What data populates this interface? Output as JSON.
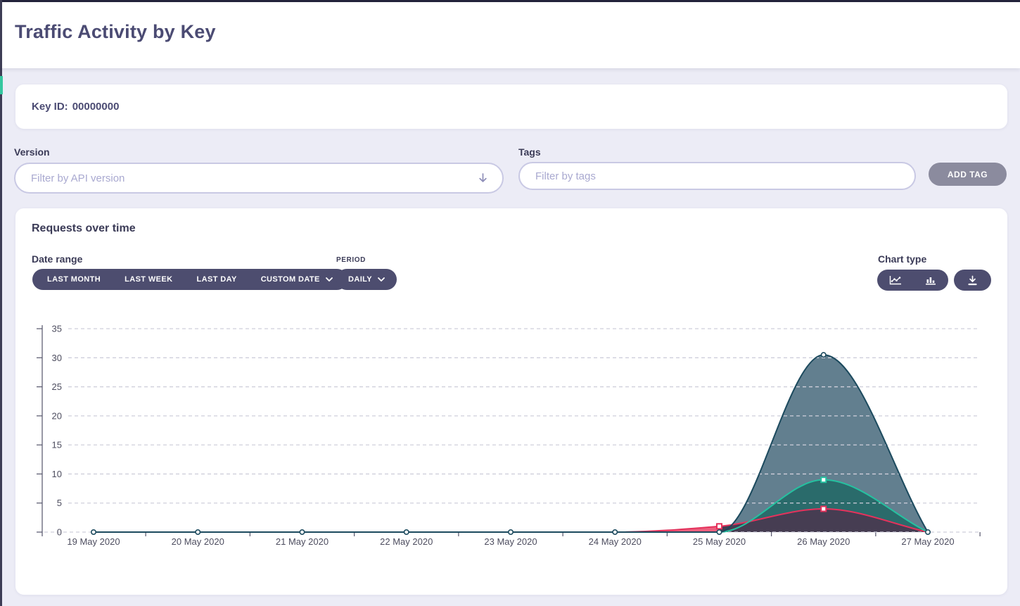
{
  "header": {
    "title": "Traffic Activity by Key"
  },
  "key_card": {
    "label": "Key ID:",
    "value": "00000000"
  },
  "filters": {
    "version": {
      "label": "Version",
      "placeholder": "Filter by API version",
      "icon": "arrow-down-icon"
    },
    "tags": {
      "label": "Tags",
      "placeholder": "Filter by tags",
      "add_button": "ADD TAG"
    }
  },
  "chart_card": {
    "title": "Requests over time",
    "date_range": {
      "label": "Date range",
      "buttons": [
        "LAST MONTH",
        "LAST WEEK",
        "LAST DAY",
        "CUSTOM DATE"
      ],
      "custom_date_icon": "chevron-down-icon"
    },
    "period": {
      "label": "PERIOD",
      "value": "DAILY",
      "icon": "chevron-down-icon"
    },
    "chart_type": {
      "label": "Chart type",
      "icons": [
        "line-chart-icon",
        "bar-chart-icon",
        "download-icon"
      ]
    }
  },
  "colors": {
    "accent_teal": "#35c7a0",
    "dark_button": "#4d4d6f",
    "add_tag_bg": "#8b8b9e",
    "title": "#4b4b73",
    "page_bg": "#ececf6"
  },
  "chart_data": {
    "type": "area",
    "title": "Requests over time",
    "x": [
      "19 May 2020",
      "20 May 2020",
      "21 May 2020",
      "22 May 2020",
      "23 May 2020",
      "24 May 2020",
      "25 May 2020",
      "26 May 2020",
      "27 May 2020"
    ],
    "ylim": [
      0,
      35
    ],
    "yticks": [
      0,
      5,
      10,
      15,
      20,
      25,
      30,
      35
    ],
    "grid": true,
    "legend": "none",
    "series": [
      {
        "name": "slate-area",
        "stroke": "#1c4a5e",
        "fill": "#627f8f",
        "marker": "circle",
        "show_markers": "all",
        "values": [
          0,
          0,
          0,
          0,
          0,
          0,
          0,
          30.5,
          0
        ]
      },
      {
        "name": "teal-line",
        "stroke": "#25c1a0",
        "fill": "#2a6b6b",
        "marker": "square",
        "show_markers": "nonzero",
        "values": [
          0,
          0,
          0,
          0,
          0,
          0,
          0,
          9,
          0
        ]
      },
      {
        "name": "red-line",
        "stroke": "#e5325c",
        "fill": "#463d52",
        "fill_outside": "#ed5f7e",
        "marker": "square",
        "show_markers": "nonzero",
        "values": [
          0,
          0,
          0,
          0,
          0,
          0,
          1,
          4,
          0
        ]
      }
    ]
  }
}
